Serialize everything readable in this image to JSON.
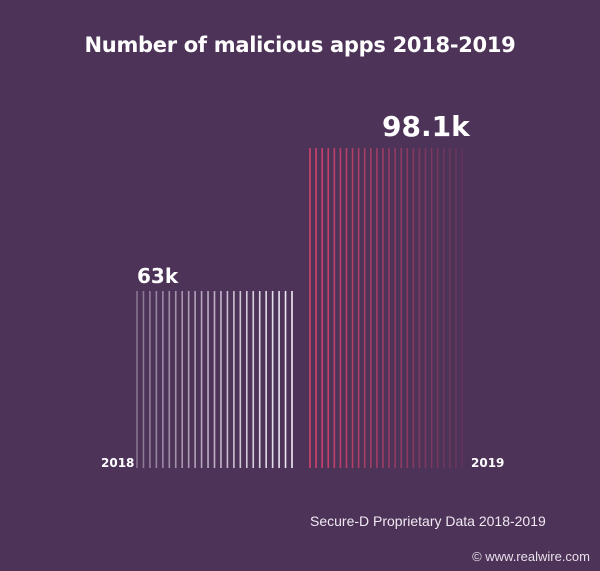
{
  "chart_data": {
    "type": "bar",
    "title": "Number of malicious apps 2018-2019",
    "categories": [
      "2018",
      "2019"
    ],
    "values": [
      63,
      98.1
    ],
    "data_labels": [
      "63k",
      "98.1k"
    ],
    "unit": "k",
    "colors": {
      "background": "#4d3358",
      "bar_2018": "#f4eefa",
      "bar_2019": "#e0466e"
    },
    "grid": false
  },
  "source": "Secure-D Proprietary Data 2018-2019",
  "credit": "© www.realwire.com"
}
